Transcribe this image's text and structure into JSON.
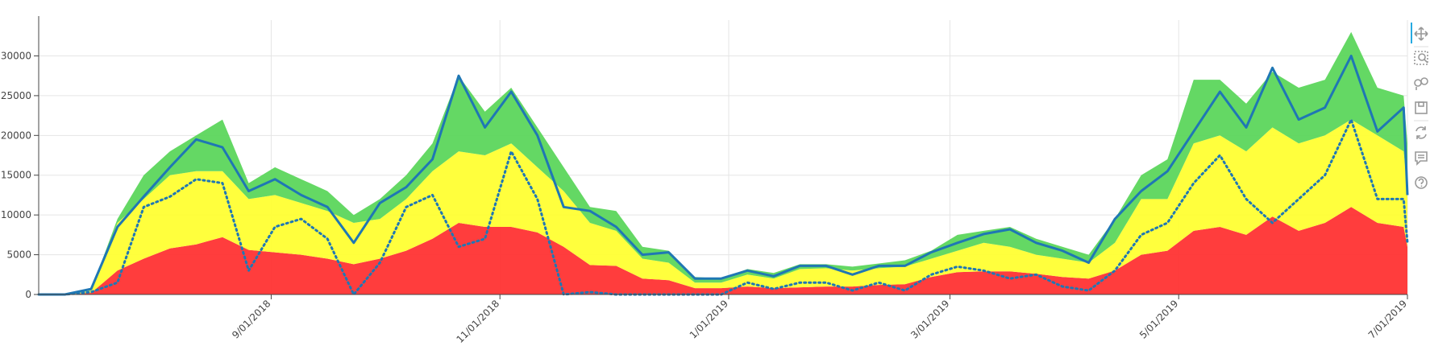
{
  "chart_data": {
    "type": "stacked_area_line",
    "x": [
      "2018-07-01",
      "2018-07-08",
      "2018-07-15",
      "2018-07-22",
      "2018-07-29",
      "2018-08-05",
      "2018-08-12",
      "2018-08-19",
      "2018-08-26",
      "2018-09-02",
      "2018-09-09",
      "2018-09-16",
      "2018-09-23",
      "2018-09-30",
      "2018-10-07",
      "2018-10-14",
      "2018-10-21",
      "2018-10-28",
      "2018-11-04",
      "2018-11-11",
      "2018-11-18",
      "2018-11-25",
      "2018-12-02",
      "2018-12-09",
      "2018-12-16",
      "2018-12-23",
      "2018-12-30",
      "2019-01-06",
      "2019-01-13",
      "2019-01-20",
      "2019-01-27",
      "2019-02-03",
      "2019-02-10",
      "2019-02-17",
      "2019-02-24",
      "2019-03-03",
      "2019-03-10",
      "2019-03-17",
      "2019-03-24",
      "2019-03-31",
      "2019-04-07",
      "2019-04-14",
      "2019-04-21",
      "2019-04-28",
      "2019-05-05",
      "2019-05-12",
      "2019-05-19",
      "2019-05-26",
      "2019-06-02",
      "2019-06-09",
      "2019-06-16",
      "2019-06-23",
      "2019-06-30",
      "2019-07-01"
    ],
    "series": [
      {
        "color": "#ff3333",
        "kind": "area",
        "values": [
          0,
          0,
          200,
          3000,
          4500,
          5800,
          6300,
          7200,
          5600,
          5300,
          5000,
          4500,
          3800,
          4500,
          5500,
          7000,
          9000,
          8500,
          8500,
          7800,
          6000,
          3700,
          3600,
          2000,
          1800,
          800,
          800,
          1000,
          800,
          900,
          1000,
          1000,
          1200,
          1300,
          2200,
          2800,
          2900,
          2900,
          2600,
          2200,
          2000,
          3000,
          5000,
          5500,
          8000,
          8500,
          7500,
          9800,
          8000,
          9000,
          11000,
          9000,
          8500,
          6000
        ]
      },
      {
        "color": "#ffff33",
        "kind": "area",
        "values": [
          0,
          0,
          300,
          6000,
          7500,
          9200,
          9200,
          8300,
          6400,
          7200,
          6500,
          6000,
          5200,
          5000,
          6500,
          8500,
          9000,
          9000,
          10500,
          8200,
          7000,
          5300,
          4400,
          2500,
          2200,
          700,
          700,
          1500,
          1200,
          2300,
          2300,
          2000,
          2100,
          2200,
          2300,
          2700,
          3600,
          3100,
          2400,
          2300,
          2000,
          3500,
          7000,
          6500,
          11000,
          11500,
          10500,
          11200,
          11000,
          11000,
          11000,
          11000,
          9500,
          7000
        ]
      },
      {
        "color": "#5cd65c",
        "kind": "area",
        "values": [
          0,
          0,
          100,
          500,
          3000,
          3000,
          4500,
          6500,
          2000,
          3500,
          3000,
          2500,
          1000,
          2500,
          3000,
          3500,
          9500,
          5500,
          7000,
          5000,
          3000,
          2000,
          2500,
          1500,
          1500,
          700,
          500,
          700,
          700,
          600,
          500,
          500,
          600,
          800,
          1000,
          2000,
          1500,
          2500,
          2000,
          1500,
          1000,
          3000,
          3000,
          5000,
          8000,
          7000,
          6000,
          7000,
          7000,
          7000,
          11000,
          6000,
          7000,
          6000
        ]
      },
      {
        "color": "#1f77b4",
        "kind": "line",
        "dash": "solid",
        "values": [
          0,
          0,
          700,
          8500,
          12300,
          16000,
          19500,
          18500,
          13000,
          14500,
          12500,
          11000,
          6500,
          11500,
          13500,
          17000,
          27500,
          21000,
          25500,
          20000,
          11000,
          10500,
          8500,
          5000,
          5300,
          2000,
          2000,
          3000,
          2300,
          3600,
          3600,
          2500,
          3600,
          3600,
          5300,
          6500,
          7600,
          8200,
          6500,
          5500,
          4000,
          9500,
          13000,
          15500,
          20500,
          25500,
          21000,
          28500,
          22000,
          23500,
          30000,
          20500,
          23500,
          12500
        ]
      },
      {
        "color": "#1f77b4",
        "kind": "line",
        "dash": "dotted",
        "values": [
          0,
          0,
          300,
          1500,
          11000,
          12300,
          14500,
          14000,
          3000,
          8500,
          9500,
          7000,
          0,
          4000,
          11000,
          12500,
          6000,
          7000,
          18000,
          12000,
          0,
          300,
          0,
          0,
          0,
          0,
          0,
          1500,
          700,
          1500,
          1500,
          500,
          1500,
          500,
          2500,
          3500,
          3000,
          2000,
          2500,
          1000,
          500,
          3000,
          7500,
          9000,
          14000,
          17500,
          12000,
          9000,
          12000,
          15000,
          22000,
          12000,
          12000,
          6500
        ]
      }
    ],
    "xlim": [
      "2018-07-01",
      "2019-07-01"
    ],
    "xticks": [
      {
        "value": "2018-09-01",
        "label": "9/01/2018"
      },
      {
        "value": "2018-11-01",
        "label": "11/01/2018"
      },
      {
        "value": "2019-01-01",
        "label": "1/01/2019"
      },
      {
        "value": "2019-03-01",
        "label": "3/01/2019"
      },
      {
        "value": "2019-05-01",
        "label": "5/01/2019"
      },
      {
        "value": "2019-07-01",
        "label": "7/01/2019"
      }
    ],
    "ylim": [
      0,
      34500
    ],
    "yticks": [
      0,
      5000,
      10000,
      15000,
      20000,
      25000,
      30000
    ],
    "grid": true
  }
}
